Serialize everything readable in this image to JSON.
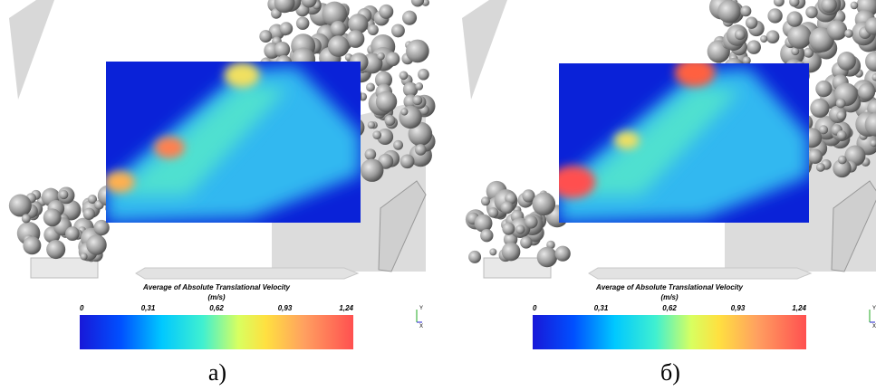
{
  "panels": [
    {
      "label": "a)",
      "colorbar": {
        "title": "Average of Absolute Translational Velocity",
        "unit": "(m/s)",
        "ticks": [
          "0",
          "0,31",
          "0,62",
          "0,93",
          "1,24"
        ]
      },
      "axes": {
        "y": "Y",
        "x": "X"
      }
    },
    {
      "label": "б)",
      "colorbar": {
        "title": "Average of Absolute Translational Velocity",
        "unit": "(m/s)",
        "ticks": [
          "0",
          "0,31",
          "0,62",
          "0,93",
          "1,24"
        ]
      },
      "axes": {
        "y": "Y",
        "x": "X"
      }
    }
  ]
}
